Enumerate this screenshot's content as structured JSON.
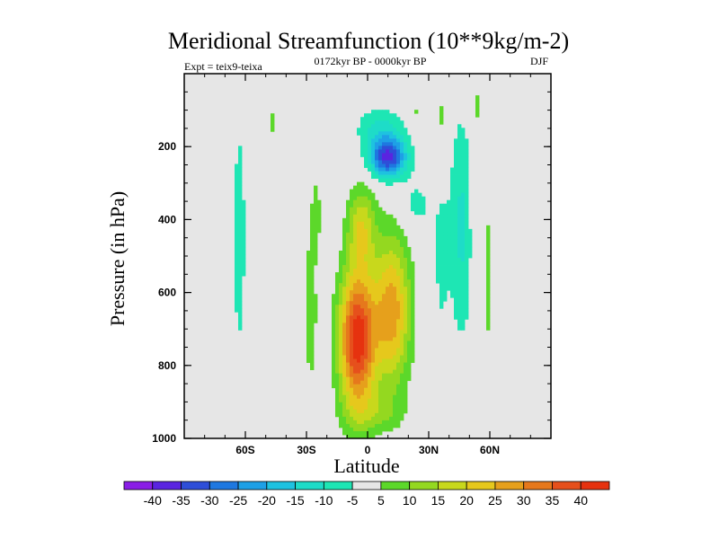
{
  "chart_data": {
    "type": "contour",
    "title": "Meridional Streamfunction (10**9kg/m-2)",
    "subtitle": "0172kyr BP - 0000kyr BP",
    "left_label": "Expt = teix9-teixa",
    "right_label": "DJF",
    "xlabel": "Latitude",
    "ylabel": "Pressure (in hPa)",
    "xlim": [
      -90,
      90
    ],
    "ylim": [
      1000,
      0
    ],
    "x_ticks": [
      {
        "value": -60,
        "label": "60S"
      },
      {
        "value": -30,
        "label": "30S"
      },
      {
        "value": 0,
        "label": "0"
      },
      {
        "value": 30,
        "label": "30N"
      },
      {
        "value": 60,
        "label": "60N"
      }
    ],
    "y_ticks": [
      {
        "value": 200,
        "label": "200"
      },
      {
        "value": 400,
        "label": "400"
      },
      {
        "value": 600,
        "label": "600"
      },
      {
        "value": 800,
        "label": "800"
      },
      {
        "value": 1000,
        "label": "1000"
      }
    ],
    "colorbar": {
      "labels": [
        "-40",
        "-35",
        "-30",
        "-25",
        "-20",
        "-15",
        "-10",
        "-5",
        "5",
        "10",
        "15",
        "20",
        "25",
        "30",
        "35",
        "40"
      ],
      "colors": [
        "#8a1ee6",
        "#5a24e0",
        "#2e4ed8",
        "#1e78e0",
        "#1ea0e6",
        "#1ec2e0",
        "#1edcc8",
        "#1ee6b4",
        "#e6e6e6",
        "#5cd82a",
        "#94d820",
        "#c8d81c",
        "#e6c81c",
        "#e6a01c",
        "#e6781c",
        "#e6501c",
        "#e6320f"
      ],
      "contour_levels": [
        -40,
        -35,
        -30,
        -25,
        -20,
        -15,
        -10,
        -5,
        5,
        10,
        15,
        20,
        25,
        30,
        35,
        40
      ]
    },
    "features": [
      {
        "name": "positive-core",
        "lat": -5,
        "pressure": 700,
        "value": 42
      },
      {
        "name": "positive-secondary",
        "lat": 12,
        "pressure": 650,
        "value": 28
      },
      {
        "name": "negative-core",
        "lat": 10,
        "pressure": 230,
        "value": -36
      }
    ]
  }
}
